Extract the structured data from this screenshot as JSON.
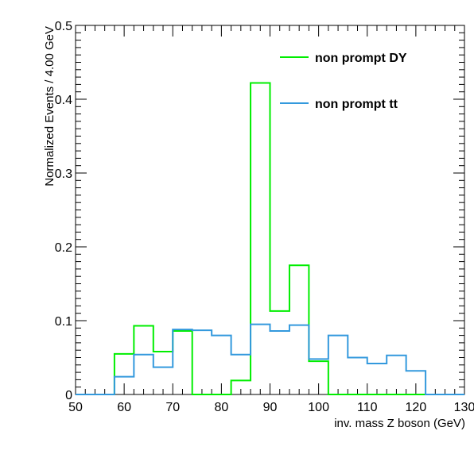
{
  "chart_data": {
    "type": "line",
    "xlabel": "inv. mass Z boson  (GeV)",
    "ylabel": "Normalized Events / 4.00 GeV",
    "xlim": [
      50,
      130
    ],
    "ylim": [
      0,
      0.5
    ],
    "x_ticks": [
      "50",
      "60",
      "70",
      "80",
      "90",
      "100",
      "110",
      "120",
      "130"
    ],
    "y_ticks": [
      "0",
      "0.1",
      "0.2",
      "0.3",
      "0.4",
      "0.5"
    ],
    "bin_edges": [
      50,
      54,
      58,
      62,
      66,
      70,
      74,
      78,
      82,
      86,
      90,
      94,
      98,
      102,
      106,
      110,
      114,
      118,
      122,
      126,
      130
    ],
    "legend_placement": "top-right",
    "series": [
      {
        "name": "non prompt DY",
        "color": "#00ee00",
        "values": [
          0,
          0,
          0.055,
          0.093,
          0.058,
          0.086,
          0,
          0,
          0.019,
          0.422,
          0.113,
          0.175,
          0.045,
          0,
          0,
          0,
          0,
          0,
          0,
          0
        ]
      },
      {
        "name": "non prompt tt",
        "color": "#3399dd",
        "values": [
          0,
          0,
          0.024,
          0.054,
          0.037,
          0.088,
          0.087,
          0.08,
          0.054,
          0.095,
          0.086,
          0.094,
          0.048,
          0.08,
          0.05,
          0.042,
          0.053,
          0.032,
          0,
          0
        ]
      }
    ]
  }
}
